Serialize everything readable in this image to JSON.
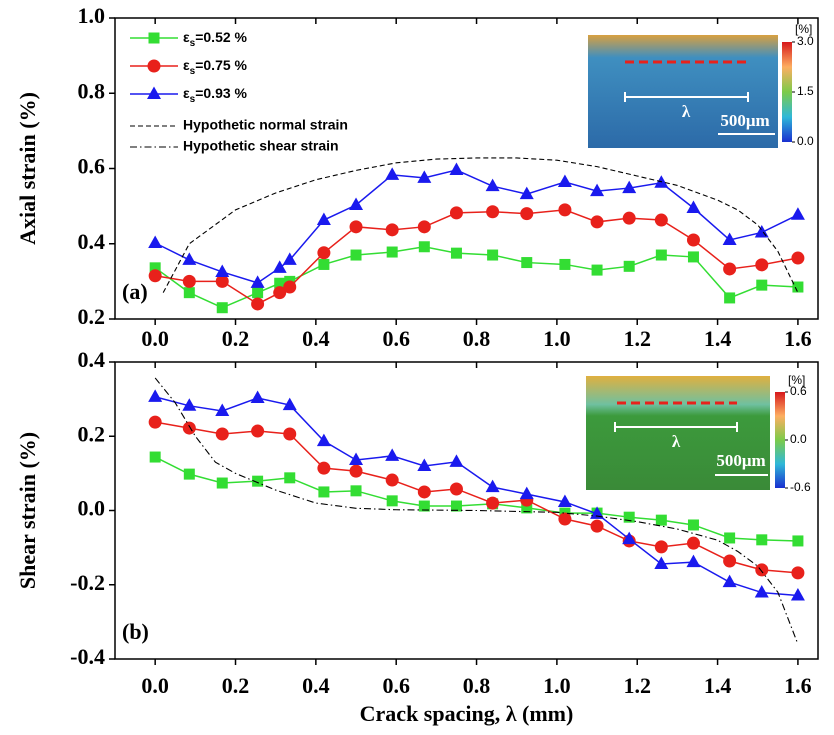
{
  "chart_data": [
    {
      "type": "line",
      "panel_label": "(a)",
      "ylabel": "Axial strain (%)",
      "legend": "upper left",
      "x": [
        0.0,
        0.085,
        0.167,
        0.255,
        0.31,
        0.335,
        0.42,
        0.5,
        0.59,
        0.67,
        0.75,
        0.84,
        0.925,
        1.02,
        1.1,
        1.18,
        1.26,
        1.34,
        1.43,
        1.51,
        1.6
      ],
      "xlim": [
        -0.1,
        1.65
      ],
      "ylim": [
        0.2,
        1.0
      ],
      "xticks": [
        {
          "value": 0,
          "label": "0.0"
        },
        0.2,
        0.4,
        0.6,
        0.8,
        {
          "value": 1,
          "label": "1.0"
        },
        1.2,
        1.4,
        1.6
      ],
      "yticks": [
        0.2,
        0.4,
        0.6,
        0.8,
        {
          "value": 1,
          "label": "1.0"
        }
      ],
      "series": [
        {
          "name": "εs=0.52 %",
          "color": "#33dd33",
          "marker": "square",
          "values": [
            0.336,
            0.27,
            0.23,
            0.27,
            0.295,
            0.3,
            0.345,
            0.37,
            0.378,
            0.392,
            0.375,
            0.37,
            0.35,
            0.345,
            0.33,
            0.34,
            0.37,
            0.365,
            0.256,
            0.29,
            0.285
          ]
        },
        {
          "name": "εs=0.75 %",
          "color": "#e8211b",
          "marker": "circle",
          "values": [
            0.315,
            0.3,
            0.3,
            0.24,
            0.27,
            0.285,
            0.376,
            0.445,
            0.437,
            0.445,
            0.482,
            0.485,
            0.48,
            0.49,
            0.458,
            0.468,
            0.463,
            0.41,
            0.333,
            0.344,
            0.362
          ]
        },
        {
          "name": "εs=0.93 %",
          "color": "#1a1aee",
          "marker": "triangle",
          "values": [
            0.402,
            0.357,
            0.325,
            0.296,
            0.336,
            0.357,
            0.463,
            0.503,
            0.583,
            0.575,
            0.596,
            0.553,
            0.532,
            0.564,
            0.54,
            0.548,
            0.562,
            0.495,
            0.41,
            0.43,
            0.477
          ]
        },
        {
          "name": "Hypothetic normal strain",
          "color": "#000000",
          "linestyle": "dashed",
          "x": [
            0.02,
            0.05,
            0.085,
            0.2,
            0.3,
            0.4,
            0.5,
            0.6,
            0.7,
            0.8,
            0.9,
            1.0,
            1.1,
            1.2,
            1.3,
            1.4,
            1.45,
            1.5,
            1.55,
            1.6
          ],
          "values": [
            0.27,
            0.33,
            0.4,
            0.49,
            0.535,
            0.57,
            0.595,
            0.615,
            0.625,
            0.628,
            0.628,
            0.622,
            0.605,
            0.58,
            0.555,
            0.516,
            0.49,
            0.45,
            0.38,
            0.27
          ]
        }
      ],
      "inset": {
        "unit": "[%]",
        "clim": [
          0,
          3
        ],
        "cticks": [
          {
            "value": 3,
            "label": "3.0"
          },
          1.5,
          {
            "value": 0,
            "label": "0.0"
          }
        ],
        "scale_bar": "500μm",
        "symbol": "λ"
      }
    },
    {
      "type": "line",
      "panel_label": "(b)",
      "ylabel": "Shear strain (%)",
      "xlabel": "Crack spacing, λ (mm)",
      "x": [
        0.0,
        0.085,
        0.167,
        0.255,
        0.335,
        0.42,
        0.5,
        0.59,
        0.67,
        0.75,
        0.84,
        0.925,
        1.02,
        1.1,
        1.18,
        1.26,
        1.34,
        1.43,
        1.51,
        1.6
      ],
      "xlim": [
        -0.1,
        1.65
      ],
      "ylim": [
        -0.4,
        0.4
      ],
      "xticks": [
        {
          "value": 0,
          "label": "0.0"
        },
        0.2,
        0.4,
        0.6,
        0.8,
        {
          "value": 1,
          "label": "1.0"
        },
        1.2,
        1.4,
        1.6
      ],
      "yticks": [
        -0.4,
        -0.2,
        {
          "value": 0,
          "label": "0.0"
        },
        0.2,
        0.4
      ],
      "series": [
        {
          "color": "#33dd33",
          "marker": "square",
          "values": [
            0.144,
            0.098,
            0.074,
            0.079,
            0.088,
            0.05,
            0.053,
            0.026,
            0.012,
            0.012,
            0.018,
            0.007,
            -0.007,
            -0.007,
            -0.018,
            -0.026,
            -0.039,
            -0.074,
            -0.079,
            -0.082
          ]
        },
        {
          "color": "#e8211b",
          "marker": "circle",
          "values": [
            0.238,
            0.222,
            0.206,
            0.214,
            0.206,
            0.114,
            0.106,
            0.082,
            0.05,
            0.058,
            0.02,
            0.028,
            -0.023,
            -0.042,
            -0.082,
            -0.098,
            -0.088,
            -0.136,
            -0.16,
            -0.168
          ]
        },
        {
          "color": "#1a1aee",
          "marker": "triangle",
          "values": [
            0.306,
            0.282,
            0.268,
            0.303,
            0.284,
            0.187,
            0.136,
            0.147,
            0.12,
            0.131,
            0.063,
            0.044,
            0.023,
            -0.009,
            -0.077,
            -0.144,
            -0.139,
            -0.193,
            -0.221,
            -0.229
          ]
        },
        {
          "name": "Hypothetic shear strain",
          "color": "#000000",
          "linestyle": "dashdot",
          "x": [
            0.0,
            0.05,
            0.1,
            0.15,
            0.2,
            0.3,
            0.4,
            0.5,
            0.6,
            0.8,
            1.0,
            1.1,
            1.2,
            1.3,
            1.4,
            1.45,
            1.5,
            1.55,
            1.6
          ],
          "values": [
            0.357,
            0.29,
            0.2,
            0.13,
            0.1,
            0.055,
            0.02,
            0.006,
            0.002,
            0.0,
            -0.005,
            -0.015,
            -0.03,
            -0.05,
            -0.08,
            -0.11,
            -0.15,
            -0.22,
            -0.36
          ]
        }
      ],
      "inset": {
        "unit": "[%]",
        "clim": [
          -0.6,
          0.6
        ],
        "cticks": [
          0.6,
          {
            "value": 0,
            "label": "0.0"
          },
          -0.6
        ],
        "scale_bar": "500μm",
        "symbol": "λ"
      }
    }
  ]
}
